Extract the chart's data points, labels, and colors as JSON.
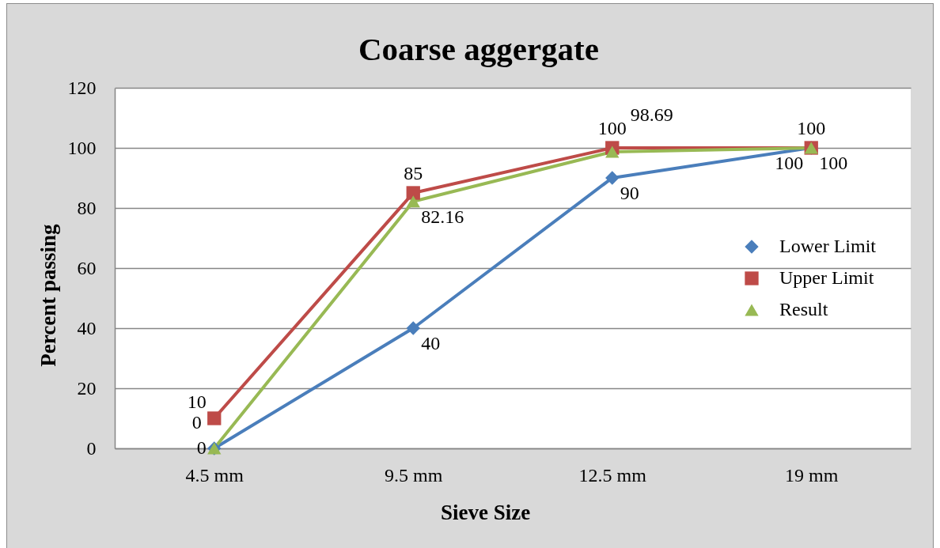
{
  "chart_data": {
    "type": "line",
    "title": "Coarse aggergate",
    "xlabel": "Sieve Size",
    "ylabel": "Percent passing",
    "categories": [
      "4.5 mm",
      "9.5 mm",
      "12.5 mm",
      "19 mm"
    ],
    "series": [
      {
        "name": "Lower Limit",
        "color": "#4a7ebb",
        "marker": "diamond",
        "values": [
          0,
          40,
          90,
          100
        ]
      },
      {
        "name": "Upper Limit",
        "color": "#be4b48",
        "marker": "square",
        "values": [
          10,
          85,
          100,
          100
        ]
      },
      {
        "name": "Result",
        "color": "#98b954",
        "marker": "triangle",
        "values": [
          0,
          82.16,
          98.69,
          100
        ]
      }
    ],
    "ylim": [
      0,
      120
    ],
    "yticks": [
      0,
      20,
      40,
      60,
      80,
      100,
      120
    ],
    "grid": "y",
    "legend": "right",
    "data_labels": true,
    "line_style": "solid"
  }
}
